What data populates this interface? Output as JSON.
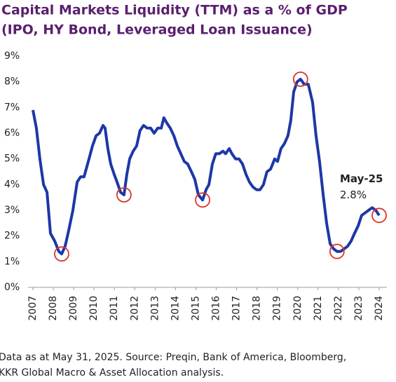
{
  "chart_data": {
    "type": "line",
    "title": [
      "Capital Markets Liquidity (TTM) as a % of GDP",
      "(IPO, HY Bond, Leveraged Loan Issuance)"
    ],
    "footnote": [
      "Data as at May 31, 2025. Source: Preqin, Bank of America, Bloomberg,",
      "KKR Global Macro & Asset Allocation analysis."
    ],
    "annotation": {
      "title": "May-25",
      "label": "2.8%"
    },
    "color": "#1d37a6",
    "highlight_color": "#d8342c",
    "highlight_indices": [
      8,
      26,
      49,
      78,
      88,
      100
    ],
    "x": [
      2007.0,
      2007.17,
      2007.34,
      2007.52,
      2007.69,
      2007.86,
      2008.07,
      2008.27,
      2008.41,
      2008.58,
      2008.75,
      2008.96,
      2009.17,
      2009.34,
      2009.51,
      2009.72,
      2009.92,
      2010.1,
      2010.27,
      2010.44,
      2010.54,
      2010.68,
      2010.82,
      2010.99,
      2011.13,
      2011.3,
      2011.47,
      2011.61,
      2011.75,
      2011.92,
      2012.09,
      2012.26,
      2012.43,
      2012.61,
      2012.78,
      2012.95,
      2013.13,
      2013.3,
      2013.43,
      2013.57,
      2013.74,
      2013.92,
      2014.09,
      2014.26,
      2014.43,
      2014.6,
      2014.78,
      2014.95,
      2015.12,
      2015.33,
      2015.5,
      2015.64,
      2015.81,
      2015.98,
      2016.15,
      2016.33,
      2016.46,
      2016.64,
      2016.77,
      2016.95,
      2017.12,
      2017.29,
      2017.46,
      2017.63,
      2017.81,
      2017.98,
      2018.15,
      2018.32,
      2018.49,
      2018.67,
      2018.87,
      2019.01,
      2019.18,
      2019.35,
      2019.52,
      2019.66,
      2019.8,
      2019.97,
      2020.14,
      2020.32,
      2020.52,
      2020.73,
      2020.9,
      2021.07,
      2021.25,
      2021.42,
      2021.59,
      2021.76,
      2021.93,
      2022.11,
      2022.28,
      2022.45,
      2022.62,
      2022.79,
      2022.97,
      2023.14,
      2023.31,
      2023.48,
      2023.66,
      2023.83,
      2024.0
    ],
    "values": [
      6.9,
      6.2,
      5.0,
      4.0,
      3.7,
      2.1,
      1.8,
      1.4,
      1.3,
      1.6,
      2.2,
      3.0,
      4.1,
      4.3,
      4.3,
      4.9,
      5.5,
      5.9,
      6.0,
      6.3,
      6.2,
      5.4,
      4.8,
      4.4,
      4.1,
      3.7,
      3.6,
      4.4,
      5.0,
      5.3,
      5.5,
      6.1,
      6.3,
      6.2,
      6.2,
      6.0,
      6.2,
      6.2,
      6.6,
      6.4,
      6.2,
      5.9,
      5.5,
      5.2,
      4.9,
      4.8,
      4.5,
      4.2,
      3.6,
      3.4,
      3.8,
      4.0,
      4.8,
      5.2,
      5.2,
      5.3,
      5.2,
      5.4,
      5.2,
      5.0,
      5.0,
      4.8,
      4.4,
      4.1,
      3.9,
      3.8,
      3.8,
      4.0,
      4.5,
      4.6,
      5.0,
      4.9,
      5.4,
      5.6,
      5.9,
      6.5,
      7.6,
      8.0,
      8.1,
      7.9,
      7.9,
      7.2,
      5.9,
      4.9,
      3.6,
      2.5,
      1.7,
      1.5,
      1.4,
      1.4,
      1.5,
      1.6,
      1.8,
      2.1,
      2.4,
      2.8,
      2.9,
      3.0,
      3.1,
      3.0,
      2.8
    ],
    "xlim": [
      2007,
      2024
    ],
    "xticks": [
      2007,
      2008,
      2009,
      2010,
      2011,
      2012,
      2013,
      2014,
      2015,
      2016,
      2017,
      2018,
      2019,
      2020,
      2021,
      2022,
      2023,
      2024
    ],
    "ylim": [
      0,
      9
    ],
    "yticks": [
      {
        "value": 0,
        "label": "0%"
      },
      {
        "value": 1,
        "label": "1%"
      },
      {
        "value": 2,
        "label": "2%"
      },
      {
        "value": 3,
        "label": "3%"
      },
      {
        "value": 4,
        "label": "4%"
      },
      {
        "value": 5,
        "label": "5%"
      },
      {
        "value": 6,
        "label": "6%"
      },
      {
        "value": 7,
        "label": "7%"
      },
      {
        "value": 8,
        "label": "8%"
      },
      {
        "value": 9,
        "label": "9%"
      }
    ]
  }
}
